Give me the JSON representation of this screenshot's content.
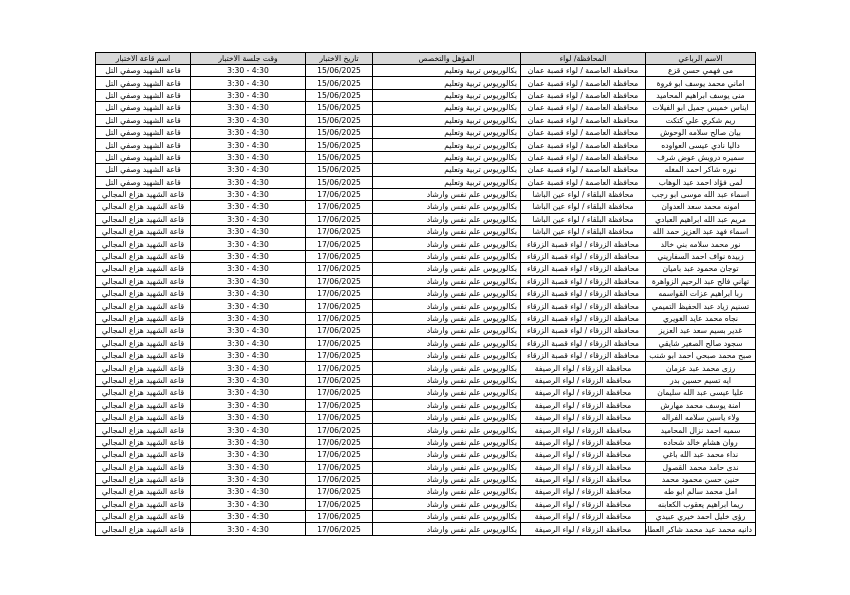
{
  "headers": {
    "name": "الاسم الرباعي",
    "governorate": "المحافظة/ لواء",
    "qualification": "المؤهل والتخصص",
    "date": "تاريخ الاختبار",
    "time": "وقت جلسة الاختبار",
    "hall": "اسم قاعة الاختبار"
  },
  "rows": [
    [
      "مى فهمي حسن قزع",
      "محافظة العاصمة / لواء قصبة عمان",
      "بكالوريوس تربية وتعليم",
      "15/06/2025",
      "3:30 - 4:30",
      "قاعة الشهيد وصفي التل"
    ],
    [
      "اماني محمد يوسف ابو فروة",
      "محافظة العاصمة / لواء قصبة عمان",
      "بكالوريوس تربية وتعليم",
      "15/06/2025",
      "3:30 - 4:30",
      "قاعة الشهيد وصفي التل"
    ],
    [
      "منى يوسف ابراهيم المحاميد",
      "محافظة العاصمة / لواء قصبة عمان",
      "بكالوريوس تربية وتعليم",
      "15/06/2025",
      "3:30 - 4:30",
      "قاعة الشهيد وصفي التل"
    ],
    [
      "ايناس خميس جميل ابو الفيلات",
      "محافظة العاصمة / لواء قصبة عمان",
      "بكالوريوس تربية وتعليم",
      "15/06/2025",
      "3:30 - 4:30",
      "قاعة الشهيد وصفي التل"
    ],
    [
      "ريم شكري علي كتكت",
      "محافظة العاصمة / لواء قصبة عمان",
      "بكالوريوس تربية وتعليم",
      "15/06/2025",
      "3:30 - 4:30",
      "قاعة الشهيد وصفي التل"
    ],
    [
      "بيان صالح سلامه الوحوش",
      "محافظة العاصمة / لواء قصبة عمان",
      "بكالوريوس تربية وتعليم",
      "15/06/2025",
      "3:30 - 4:30",
      "قاعة الشهيد وصفي التل"
    ],
    [
      "داليا نادي عيسى العواوده",
      "محافظة العاصمة / لواء قصبة عمان",
      "بكالوريوس تربية وتعليم",
      "15/06/2025",
      "3:30 - 4:30",
      "قاعة الشهيد وصفي التل"
    ],
    [
      "سميره درويش عوض شرف",
      "محافظة العاصمة / لواء قصبة عمان",
      "بكالوريوس تربية وتعليم",
      "15/06/2025",
      "3:30 - 4:30",
      "قاعة الشهيد وصفي التل"
    ],
    [
      "نوره شاكر احمد المغله",
      "محافظة العاصمة / لواء قصبة عمان",
      "بكالوريوس تربية وتعليم",
      "15/06/2025",
      "3:30 - 4:30",
      "قاعة الشهيد وصفي التل"
    ],
    [
      "لمى فؤاد احمد عبد الوهاب",
      "محافظة العاصمة / لواء قصبة عمان",
      "بكالوريوس تربية وتعليم",
      "15/06/2025",
      "3:30 - 4:30",
      "قاعة الشهيد وصفي التل"
    ],
    [
      "اسماء عبد الله موسى ابو رجب",
      "محافظة البلقاء / لواء عين الباشا",
      "بكالوريوس علم نفس وارشاد",
      "17/06/2025",
      "3:30 - 4:30",
      "قاعة الشهيد هزاع المجالي"
    ],
    [
      "امونه محمد سعد العدوان",
      "محافظة البلقاء / لواء عين الباشا",
      "بكالوريوس علم نفس وارشاد",
      "17/06/2025",
      "3:30 - 4:30",
      "قاعة الشهيد هزاع المجالي"
    ],
    [
      "مريم عبد الله ابراهيم العبادي",
      "محافظة البلقاء / لواء عين الباشا",
      "بكالوريوس علم نفس وارشاد",
      "17/06/2025",
      "3:30 - 4:30",
      "قاعة الشهيد هزاع المجالي"
    ],
    [
      "اسماء فهد عبد العزيز حمد الله",
      "محافظة البلقاء / لواء عين الباشا",
      "بكالوريوس علم نفس وارشاد",
      "17/06/2025",
      "3:30 - 4:30",
      "قاعة الشهيد هزاع المجالي"
    ],
    [
      "نور محمد سلامه بني خالد",
      "محافظة الزرقاء / لواء قصبة الزرقاء",
      "بكالوريوس علم نفس وارشاد",
      "17/06/2025",
      "3:30 - 4:30",
      "قاعة الشهيد هزاع المجالي"
    ],
    [
      "زبيدة نواف احمد السفاريني",
      "محافظة الزرقاء / لواء قصبة الزرقاء",
      "بكالوريوس علم نفس وارشاد",
      "17/06/2025",
      "3:30 - 4:30",
      "قاعة الشهيد هزاع المجالي"
    ],
    [
      "توجان محمود عبد باميان",
      "محافظة الزرقاء / لواء قصبة الزرقاء",
      "بكالوريوس علم نفس وارشاد",
      "17/06/2025",
      "3:30 - 4:30",
      "قاعة الشهيد هزاع المجالي"
    ],
    [
      "تهاني فالح عبد الرحيم الزواهرة",
      "محافظة الزرقاء / لواء قصبة الزرقاء",
      "بكالوريوس علم نفس وارشاد",
      "17/06/2025",
      "3:30 - 4:30",
      "قاعة الشهيد هزاع المجالي"
    ],
    [
      "ربا ابراهيم عزات القواسمه",
      "محافظة الزرقاء / لواء قصبة الزرقاء",
      "بكالوريوس علم نفس وارشاد",
      "17/06/2025",
      "3:30 - 4:30",
      "قاعة الشهيد هزاع المجالي"
    ],
    [
      "تسنيم زياد عبد الحفيظ التميمي",
      "محافظة الزرقاء / لواء قصبة الزرقاء",
      "بكالوريوس علم نفس وارشاد",
      "17/06/2025",
      "3:30 - 4:30",
      "قاعة الشهيد هزاع المجالي"
    ],
    [
      "نجاه محمد عايد الغويري",
      "محافظة الزرقاء / لواء قصبة الزرقاء",
      "بكالوريوس علم نفس وارشاد",
      "17/06/2025",
      "3:30 - 4:30",
      "قاعة الشهيد هزاع المجالي"
    ],
    [
      "غدير بسيم سعد عبد العزيز",
      "محافظة الزرقاء / لواء قصبة الزرقاء",
      "بكالوريوس علم نفس وارشاد",
      "17/06/2025",
      "3:30 - 4:30",
      "قاعة الشهيد هزاع المجالي"
    ],
    [
      "سجود صالح الصغير شايقي",
      "محافظة الزرقاء / لواء قصبة الزرقاء",
      "بكالوريوس علم نفس وارشاد",
      "17/06/2025",
      "3:30 - 4:30",
      "قاعة الشهيد هزاع المجالي"
    ],
    [
      "صبح محمد صبحي احمد ابو شنب",
      "محافظة الزرقاء / لواء قصبة الزرقاء",
      "بكالوريوس علم نفس وارشاد",
      "17/06/2025",
      "3:30 - 4:30",
      "قاعة الشهيد هزاع المجالي"
    ],
    [
      "رزى محمد عبد عزمان",
      "محافظة الزرقاء / لواء الرصيفة",
      "بكالوريوس علم نفس وارشاد",
      "17/06/2025",
      "3:30 - 4:30",
      "قاعة الشهيد هزاع المجالي"
    ],
    [
      "ايه تسيم حسين بدر",
      "محافظة الزرقاء / لواء الرصيفة",
      "بكالوريوس علم نفس وارشاد",
      "17/06/2025",
      "3:30 - 4:30",
      "قاعة الشهيد هزاع المجالي"
    ],
    [
      "عليا عيسى عبد الله سليمان",
      "محافظة الزرقاء / لواء الرصيفة",
      "بكالوريوس علم نفس وارشاد",
      "17/06/2025",
      "3:30 - 4:30",
      "قاعة الشهيد هزاع المجالي"
    ],
    [
      "امنة يوسف محمد مهارش",
      "محافظة الزرقاء / لواء الرصيفة",
      "بكالوريوس علم نفس وارشاد",
      "17/06/2025",
      "3:30 - 4:30",
      "قاعة الشهيد هزاع المجالي"
    ],
    [
      "ولاء ياسين سلامه الفراله",
      "محافظة الزرقاء / لواء الرصيفة",
      "بكالوريوس علم نفس وارشاد",
      "17/06/2025",
      "3:30 - 4:30",
      "قاعة الشهيد هزاع المجالي"
    ],
    [
      "سميه احمد نزال المحاميد",
      "محافظة الزرقاء / لواء الرصيفة",
      "بكالوريوس علم نفس وارشاد",
      "17/06/2025",
      "3:30 - 4:30",
      "قاعة الشهيد هزاع المجالي"
    ],
    [
      "روان هشام خالد شحاده",
      "محافظة الزرقاء / لواء الرصيفة",
      "بكالوريوس علم نفس وارشاد",
      "17/06/2025",
      "3:30 - 4:30",
      "قاعة الشهيد هزاع المجالي"
    ],
    [
      "نداء محمد عبد الله باغي",
      "محافظة الزرقاء / لواء الرصيفة",
      "بكالوريوس علم نفس وارشاد",
      "17/06/2025",
      "3:30 - 4:30",
      "قاعة الشهيد هزاع المجالي"
    ],
    [
      "ندى حامد محمد القصول",
      "محافظة الزرقاء / لواء الرصيفة",
      "بكالوريوس علم نفس وارشاد",
      "17/06/2025",
      "3:30 - 4:30",
      "قاعة الشهيد هزاع المجالي"
    ],
    [
      "حنين حسن محمود محمد",
      "محافظة الزرقاء / لواء الرصيفة",
      "بكالوريوس علم نفس وارشاد",
      "17/06/2025",
      "3:30 - 4:30",
      "قاعة الشهيد هزاع المجالي"
    ],
    [
      "امل محمد سالم ابو طه",
      "محافظة الزرقاء / لواء الرصيفة",
      "بكالوريوس علم نفس وارشاد",
      "17/06/2025",
      "3:30 - 4:30",
      "قاعة الشهيد هزاع المجالي"
    ],
    [
      "ريما ابراهيم يعقوب الكعابنه",
      "محافظة الزرقاء / لواء الرصيفة",
      "بكالوريوس علم نفس وارشاد",
      "17/06/2025",
      "3:30 - 4:30",
      "قاعة الشهيد هزاع المجالي"
    ],
    [
      "رؤى خليل احمد خيري عبيدي",
      "محافظة الزرقاء / لواء الرصيفة",
      "بكالوريوس علم نفس وارشاد",
      "17/06/2025",
      "3:30 - 4:30",
      "قاعة الشهيد هزاع المجالي"
    ],
    [
      "دانيه محمد عيد محمد شاكر العطار",
      "محافظة الزرقاء / لواء الرصيفة",
      "بكالوريوس علم نفس وارشاد",
      "17/06/2025",
      "3:30 - 4:30",
      "قاعة الشهيد هزاع المجالي"
    ]
  ]
}
